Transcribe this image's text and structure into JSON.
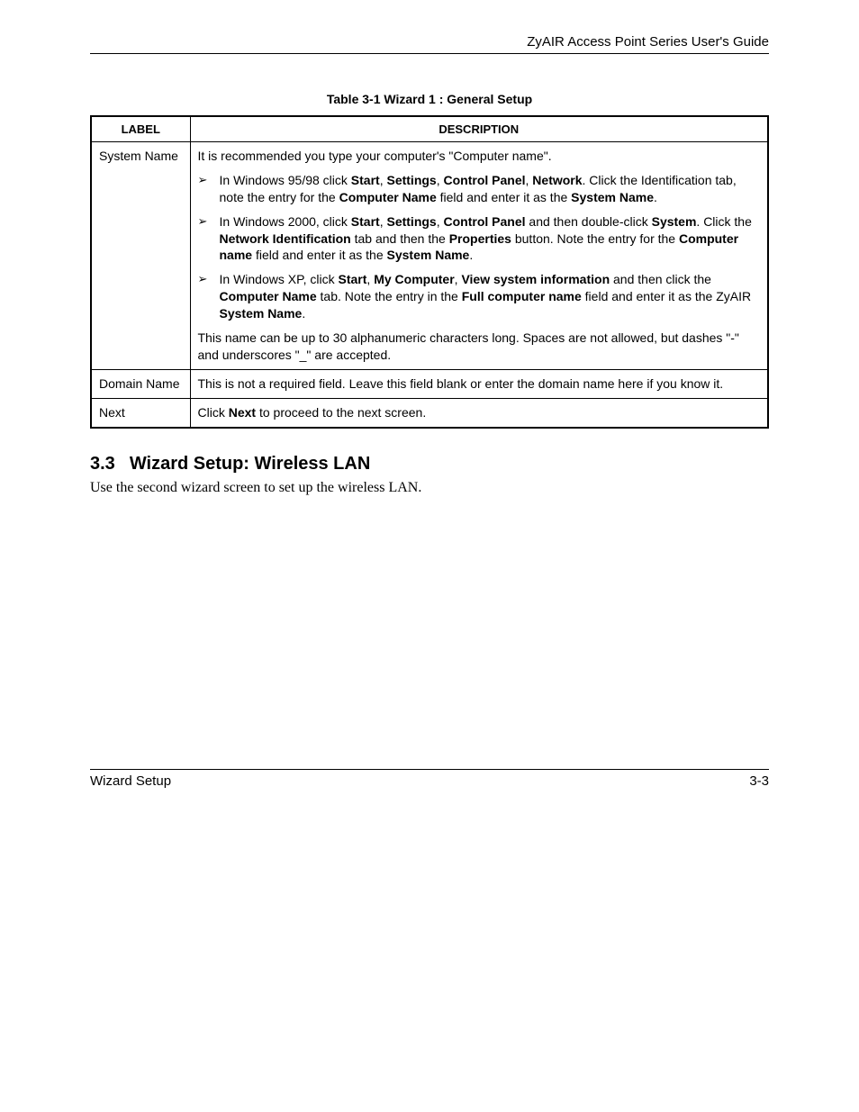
{
  "header": {
    "title": "ZyAIR Access Point Series User's Guide"
  },
  "table": {
    "caption": "Table 3-1 Wizard 1 : General Setup",
    "col_label": "LABEL",
    "col_desc": "DESCRIPTION",
    "rows": {
      "sysname": {
        "label": "System Name",
        "intro": "It is recommended you type your computer's \"Computer name\".",
        "b1_a": "In Windows 95/98 click ",
        "b1_b": "Start",
        "b1_c": ", ",
        "b1_d": "Settings",
        "b1_e": ", ",
        "b1_f": "Control Panel",
        "b1_g": ", ",
        "b1_h": "Network",
        "b1_i": ". Click the Identification tab, note the entry for the ",
        "b1_j": "Computer Name",
        "b1_k": " field and enter it as the ",
        "b1_l": "System Name",
        "b1_m": ".",
        "b2_a": "In Windows 2000, click ",
        "b2_b": "Start",
        "b2_c": ", ",
        "b2_d": "Settings",
        "b2_e": ", ",
        "b2_f": "Control Panel",
        "b2_g": " and then double-click ",
        "b2_h": "System",
        "b2_i": ". Click the ",
        "b2_j": "Network Identification",
        "b2_k": " tab and then the ",
        "b2_l": "Properties",
        "b2_m": " button. Note the entry for the ",
        "b2_n": "Computer name",
        "b2_o": " field and enter it as the ",
        "b2_p": "System Name",
        "b2_q": ".",
        "b3_a": "In Windows XP, click ",
        "b3_b": "Start",
        "b3_c": ", ",
        "b3_d": "My Computer",
        "b3_e": ", ",
        "b3_f": "View system information",
        "b3_g": " and then click the ",
        "b3_h": "Computer Name",
        "b3_i": " tab. Note the entry in the ",
        "b3_j": "Full computer name",
        "b3_k": " field and enter it as the ZyAIR ",
        "b3_l": "System Name",
        "b3_m": ".",
        "note": "This name can be up to 30 alphanumeric characters long. Spaces are not allowed, but dashes \"-\" and underscores \"_\" are accepted."
      },
      "domain": {
        "label": "Domain Name",
        "desc": "This is not a required field. Leave this field blank or enter the domain name here if you know it."
      },
      "next": {
        "label": "Next",
        "a": "Click ",
        "b": "Next",
        "c": " to proceed to the next screen."
      }
    }
  },
  "section": {
    "num": "3.3",
    "title": "Wizard Setup: Wireless LAN",
    "body": "Use the second wizard screen to set up the wireless LAN."
  },
  "footer": {
    "left": "Wizard Setup",
    "right": "3-3"
  },
  "glyph": "➢"
}
